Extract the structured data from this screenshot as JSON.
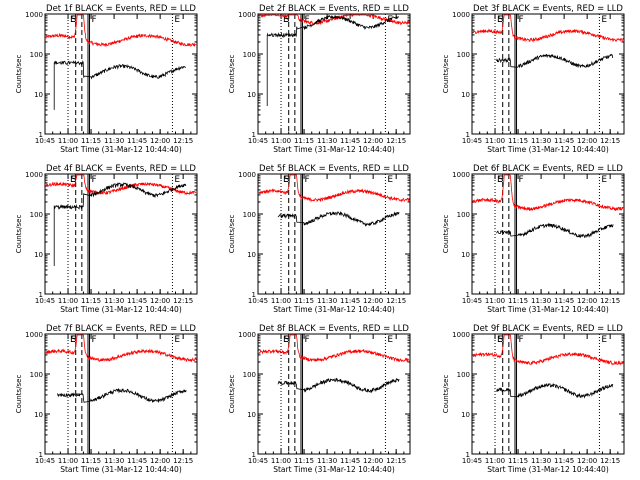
{
  "chart_data": {
    "type": "line",
    "x_tick_labels": [
      "10:45",
      "11:00",
      "11:15",
      "11:30",
      "11:45",
      "12:00",
      "12:15"
    ],
    "x_tick_minutes": [
      645,
      660,
      675,
      690,
      705,
      720,
      735
    ],
    "xlim_minutes": [
      645,
      744
    ],
    "ylim": [
      1,
      1000
    ],
    "y_scale": "log",
    "y_tick_labels": [
      "1",
      "10",
      "100",
      "1000"
    ],
    "ylabel": "Counts/sec",
    "xlabel": "Start Time (31-Mar-12 10:44:40)",
    "markers": [
      {
        "label": "S",
        "minutes": 665,
        "style": "dashed"
      },
      {
        "label": "",
        "minutes": 669,
        "style": "dashed"
      },
      {
        "label": "",
        "minutes": 673,
        "style": "solid"
      },
      {
        "label": "F",
        "minutes": 674,
        "style": "solid"
      },
      {
        "label": "E",
        "minutes": 728,
        "style": "dotted"
      },
      {
        "label": "E",
        "minutes": 660,
        "style": "dotted"
      }
    ],
    "series_colors": {
      "events": "#000000",
      "lld": "#ff0000"
    },
    "panels": [
      {
        "title": "Det 1f BLACK = Events, RED = LLD",
        "red_base": 230,
        "red_peak": 2500,
        "black_base": 38,
        "black_start": 651,
        "black_start_level": 60,
        "black_drop": 4
      },
      {
        "title": "Det 2f BLACK = Events, RED = LLD",
        "red_base": 800,
        "red_peak": 2500,
        "black_base": 650,
        "black_start": 651,
        "black_start_level": 300,
        "black_drop": 5
      },
      {
        "title": "Det 3f BLACK = Events, RED = LLD",
        "red_base": 300,
        "red_peak": 2500,
        "black_base": 70,
        "black_start": 661,
        "black_start_level": 70,
        "black_drop": 0
      },
      {
        "title": "Det 4f BLACK = Events, RED = LLD",
        "red_base": 450,
        "red_peak": 2500,
        "black_base": 420,
        "black_start": 651,
        "black_start_level": 150,
        "black_drop": 5
      },
      {
        "title": "Det 5f BLACK = Events, RED = LLD",
        "red_base": 300,
        "red_peak": 2500,
        "black_base": 80,
        "black_start": 658,
        "black_start_level": 90,
        "black_drop": 0
      },
      {
        "title": "Det 6f BLACK = Events, RED = LLD",
        "red_base": 180,
        "red_peak": 2500,
        "black_base": 40,
        "black_start": 661,
        "black_start_level": 35,
        "black_drop": 0
      },
      {
        "title": "Det 7f BLACK = Events, RED = LLD",
        "red_base": 300,
        "red_peak": 2500,
        "black_base": 30,
        "black_start": 653,
        "black_start_level": 30,
        "black_drop": 0
      },
      {
        "title": "Det 8f BLACK = Events, RED = LLD",
        "red_base": 300,
        "red_peak": 2500,
        "black_base": 55,
        "black_start": 658,
        "black_start_level": 60,
        "black_drop": 0
      },
      {
        "title": "Det 9f BLACK = Events, RED = LLD",
        "red_base": 250,
        "red_peak": 2500,
        "black_base": 40,
        "black_start": 661,
        "black_start_level": 40,
        "black_drop": 0
      }
    ]
  }
}
